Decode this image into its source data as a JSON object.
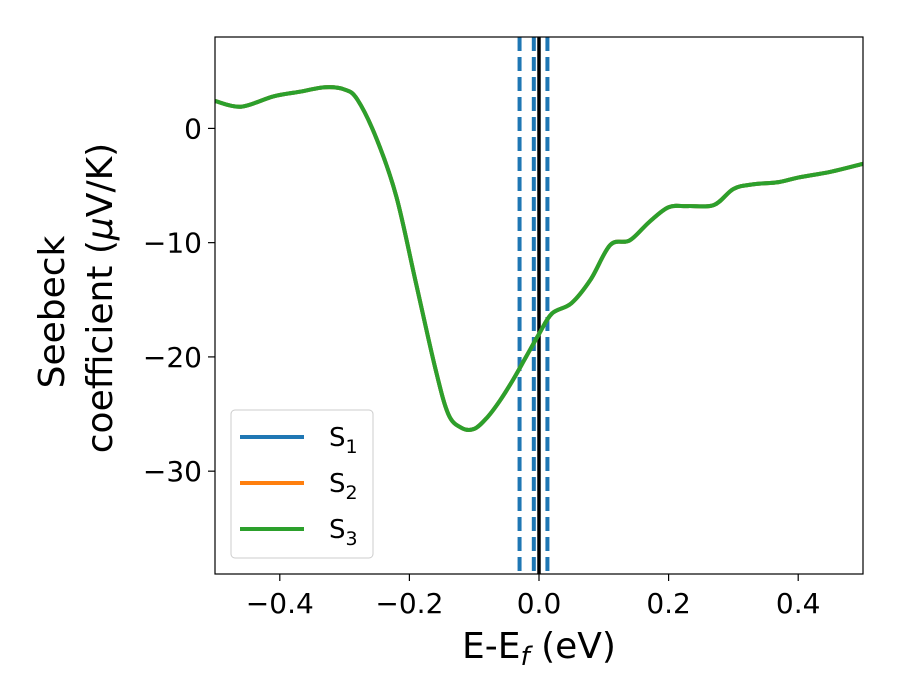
{
  "chart_data": {
    "type": "line",
    "xlabel": {
      "main": "E-E",
      "sub": "f",
      "unit": " (eV)"
    },
    "ylabel": {
      "line1": "Seebeck",
      "line2": "coefficient  (",
      "mu": "μ",
      "line2_end": "V/K)"
    },
    "xlim": [
      -0.5,
      0.5
    ],
    "ylim": [
      -39,
      8
    ],
    "xticks": [
      -0.4,
      -0.2,
      0.0,
      0.2,
      0.4
    ],
    "xtick_labels": [
      "−0.4",
      "−0.2",
      "0.0",
      "0.2",
      "0.4"
    ],
    "yticks": [
      0,
      -10,
      -20,
      -30
    ],
    "ytick_labels": [
      "0",
      "−10",
      "−20",
      "−30"
    ],
    "legend_position": "bottom-left",
    "series": [
      {
        "name": "S",
        "sub": "1",
        "color": "#1f77b4",
        "x": [
          -0.5,
          -0.46,
          -0.41,
          -0.37,
          -0.33,
          -0.3,
          -0.28,
          -0.25,
          -0.22,
          -0.19,
          -0.16,
          -0.14,
          -0.12,
          -0.1,
          -0.08,
          -0.06,
          -0.04,
          -0.02,
          0.0,
          0.02,
          0.05,
          0.08,
          0.11,
          0.14,
          0.17,
          0.2,
          0.23,
          0.27,
          0.3,
          0.33,
          0.37,
          0.4,
          0.45,
          0.5
        ],
        "y": [
          2.4,
          1.9,
          2.8,
          3.2,
          3.6,
          3.4,
          2.5,
          -1.0,
          -6.0,
          -13.5,
          -21.0,
          -25.0,
          -26.2,
          -26.3,
          -25.3,
          -23.8,
          -22.0,
          -20.0,
          -18.0,
          -16.2,
          -15.3,
          -13.2,
          -10.2,
          -9.8,
          -8.2,
          -6.9,
          -6.8,
          -6.7,
          -5.3,
          -4.9,
          -4.7,
          -4.3,
          -3.8,
          -3.1
        ]
      },
      {
        "name": "S",
        "sub": "2",
        "color": "#ff7f0e",
        "x": [
          -0.5,
          -0.46,
          -0.41,
          -0.37,
          -0.33,
          -0.3,
          -0.28,
          -0.25,
          -0.22,
          -0.19,
          -0.16,
          -0.14,
          -0.12,
          -0.1,
          -0.08,
          -0.06,
          -0.04,
          -0.02,
          0.0,
          0.02,
          0.05,
          0.08,
          0.11,
          0.14,
          0.17,
          0.2,
          0.23,
          0.27,
          0.3,
          0.33,
          0.37,
          0.4,
          0.45,
          0.5
        ],
        "y": [
          2.4,
          1.9,
          2.8,
          3.2,
          3.6,
          3.4,
          2.5,
          -1.0,
          -6.0,
          -13.5,
          -21.0,
          -25.0,
          -26.2,
          -26.3,
          -25.3,
          -23.8,
          -22.0,
          -20.0,
          -18.0,
          -16.2,
          -15.3,
          -13.2,
          -10.2,
          -9.8,
          -8.2,
          -6.9,
          -6.8,
          -6.7,
          -5.3,
          -4.9,
          -4.7,
          -4.3,
          -3.8,
          -3.1
        ]
      },
      {
        "name": "S",
        "sub": "3",
        "color": "#2ca02c",
        "x": [
          -0.5,
          -0.46,
          -0.41,
          -0.37,
          -0.33,
          -0.3,
          -0.28,
          -0.25,
          -0.22,
          -0.19,
          -0.16,
          -0.14,
          -0.12,
          -0.1,
          -0.08,
          -0.06,
          -0.04,
          -0.02,
          0.0,
          0.02,
          0.05,
          0.08,
          0.11,
          0.14,
          0.17,
          0.2,
          0.23,
          0.27,
          0.3,
          0.33,
          0.37,
          0.4,
          0.45,
          0.5
        ],
        "y": [
          2.4,
          1.9,
          2.8,
          3.2,
          3.6,
          3.4,
          2.5,
          -1.0,
          -6.0,
          -13.5,
          -21.0,
          -25.0,
          -26.2,
          -26.3,
          -25.3,
          -23.8,
          -22.0,
          -20.0,
          -18.0,
          -16.2,
          -15.3,
          -13.2,
          -10.2,
          -9.8,
          -8.2,
          -6.9,
          -6.8,
          -6.7,
          -5.3,
          -4.9,
          -4.7,
          -4.3,
          -3.8,
          -3.1
        ]
      }
    ],
    "vlines": [
      {
        "x": -0.03,
        "style": "dashed",
        "color": "#1f77b4"
      },
      {
        "x": -0.008,
        "style": "dashed",
        "color": "#1f77b4"
      },
      {
        "x": 0.013,
        "style": "dashed",
        "color": "#1f77b4"
      },
      {
        "x": 0.0,
        "style": "solid",
        "color": "#000000"
      }
    ]
  }
}
